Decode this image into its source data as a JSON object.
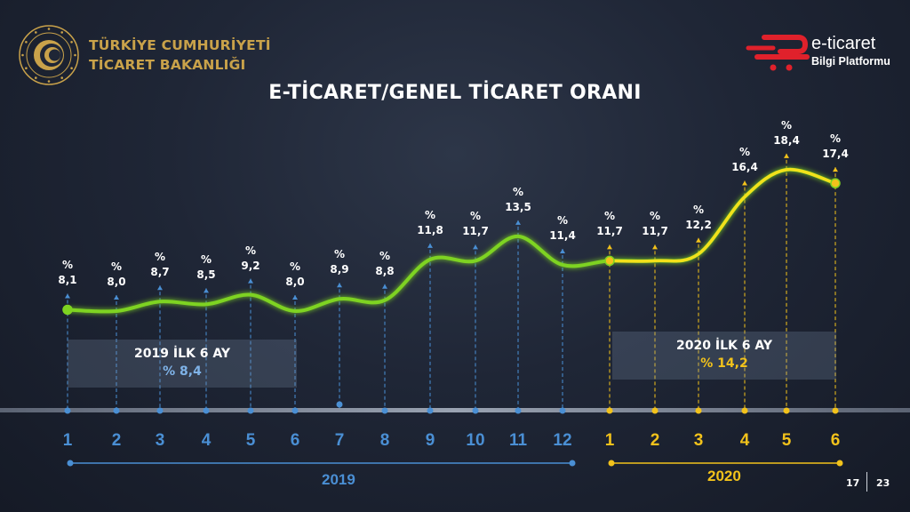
{
  "header": {
    "ministry_line1": "TÜRKİYE CUMHURİYETİ",
    "ministry_line2": "TİCARET BAKANLIĞI",
    "brand_name": "e-ticaret",
    "brand_sub": "Bilgi Platformu",
    "title": "E-TİCARET/GENEL TİCARET ORANI"
  },
  "colors": {
    "y2019": "#4a8fd4",
    "y2020": "#f2c21b",
    "line": "#7ed321",
    "gold": "#c9a24a",
    "brand_red": "#e0212b"
  },
  "chart_data": {
    "type": "line",
    "title": "E-TİCARET/GENEL TİCARET ORANI",
    "xlabel": "",
    "ylabel": "%",
    "categories": [
      "2019-1",
      "2019-2",
      "2019-3",
      "2019-4",
      "2019-5",
      "2019-6",
      "2019-7",
      "2019-8",
      "2019-9",
      "2019-10",
      "2019-11",
      "2019-12",
      "2020-1",
      "2020-2",
      "2020-3",
      "2020-4",
      "2020-5",
      "2020-6"
    ],
    "series": [
      {
        "name": "E-ticaret / Genel ticaret oranı (%)",
        "values": [
          8.1,
          8.0,
          8.7,
          8.5,
          9.2,
          8.0,
          8.9,
          8.8,
          11.8,
          11.7,
          13.5,
          11.4,
          11.7,
          11.7,
          12.2,
          16.4,
          18.4,
          17.4
        ]
      }
    ],
    "value_labels": [
      "8,1",
      "8,0",
      "8,7",
      "8,5",
      "9,2",
      "8,0",
      "8,9",
      "8,8",
      "11,8",
      "11,7",
      "13,5",
      "11,4",
      "11,7",
      "11,7",
      "12,2",
      "16,4",
      "18,4",
      "17,4"
    ],
    "annotations": [
      {
        "label": "2019 İLK 6 AY",
        "value": "% 8,4"
      },
      {
        "label": "2020 İLK 6 AY",
        "value": "% 14,2"
      }
    ],
    "groups": [
      {
        "year": "2019",
        "months": [
          "1",
          "2",
          "3",
          "4",
          "5",
          "6",
          "7",
          "8",
          "9",
          "10",
          "11",
          "12"
        ]
      },
      {
        "year": "2020",
        "months": [
          "1",
          "2",
          "3",
          "4",
          "5",
          "6"
        ]
      }
    ],
    "grid": false,
    "legend": "none"
  },
  "summary": {
    "y2019_label": "2019 İLK 6 AY",
    "y2019_value": "% 8,4",
    "y2020_label": "2020 İLK 6 AY",
    "y2020_value": "% 14,2"
  },
  "axis": {
    "year_2019": "2019",
    "year_2020": "2020",
    "percent_sign": "%"
  },
  "pager": {
    "current": "17",
    "total": "23"
  }
}
